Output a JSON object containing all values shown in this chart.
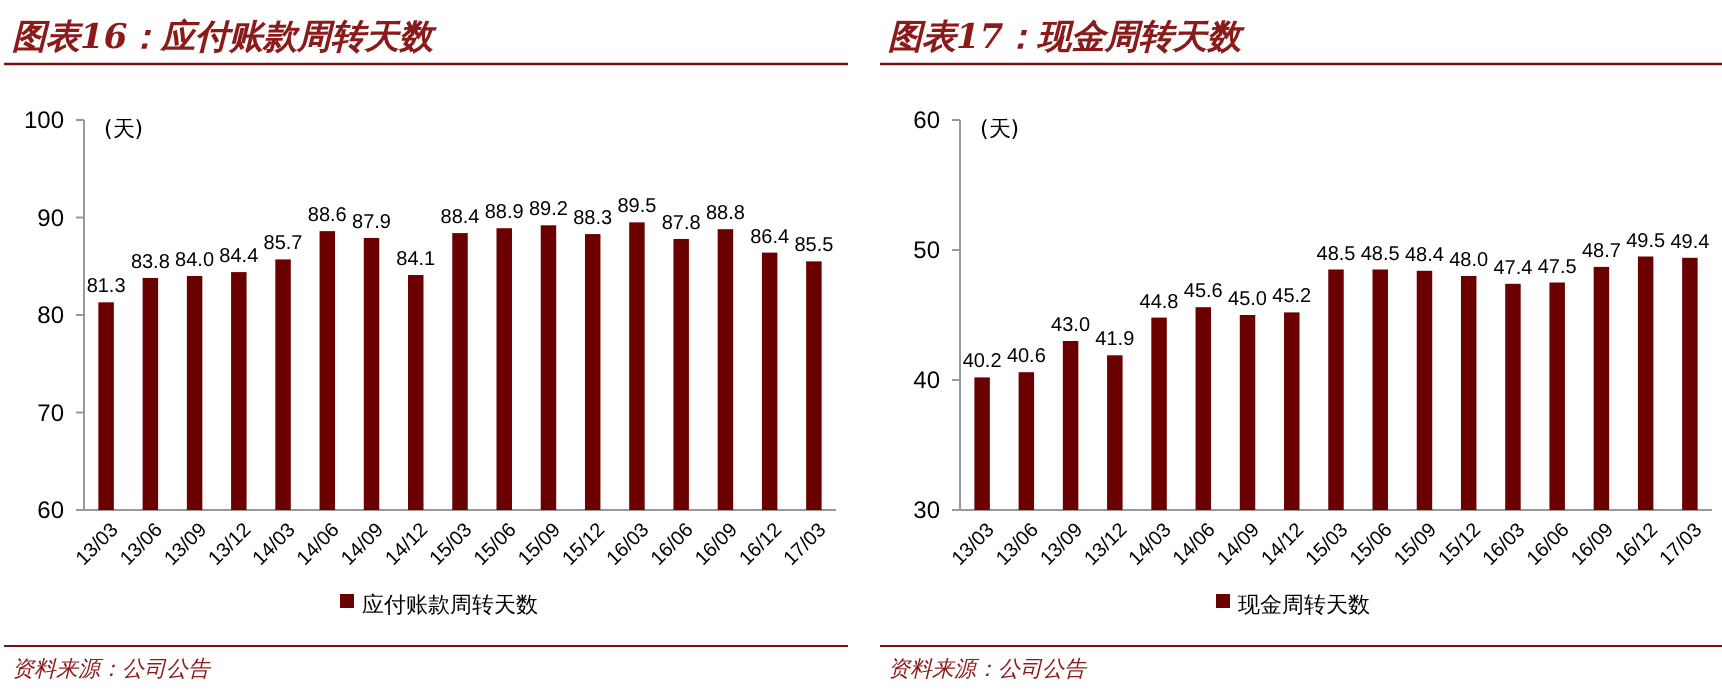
{
  "chart_data": [
    {
      "type": "bar",
      "title": "图表16：应付账款周转天数",
      "ylabel": "(天)",
      "categories": [
        "13/03",
        "13/06",
        "13/09",
        "13/12",
        "14/03",
        "14/06",
        "14/09",
        "14/12",
        "15/03",
        "15/06",
        "15/09",
        "15/12",
        "16/03",
        "16/06",
        "16/09",
        "16/12",
        "17/03"
      ],
      "series": [
        {
          "name": "应付账款周转天数",
          "color": "#6b0000",
          "values": [
            81.3,
            83.8,
            84.0,
            84.4,
            85.7,
            88.6,
            87.9,
            84.1,
            88.4,
            88.9,
            89.2,
            88.3,
            89.5,
            87.8,
            88.8,
            86.4,
            85.5
          ],
          "value_labels": [
            "81.3",
            "83.8",
            "84.0",
            "84.4",
            "85.7",
            "88.6",
            "87.9",
            "84.1",
            "88.4",
            "88.9",
            "89.2",
            "88.3",
            "89.5",
            "87.8",
            "88.8",
            "86.4",
            "85.5"
          ]
        }
      ],
      "ylim": [
        60,
        100
      ],
      "yticks": [
        60,
        70,
        80,
        90,
        100
      ],
      "legend": "bottom",
      "grid": false,
      "annotations": [
        "资料来源：公司公告"
      ]
    },
    {
      "type": "bar",
      "title": "图表17：现金周转天数",
      "ylabel": "(天)",
      "categories": [
        "13/03",
        "13/06",
        "13/09",
        "13/12",
        "14/03",
        "14/06",
        "14/09",
        "14/12",
        "15/03",
        "15/06",
        "15/09",
        "15/12",
        "16/03",
        "16/06",
        "16/09",
        "16/12",
        "17/03"
      ],
      "series": [
        {
          "name": "现金周转天数",
          "color": "#6b0000",
          "values": [
            40.2,
            40.6,
            43.0,
            41.9,
            44.8,
            45.6,
            45.0,
            45.2,
            48.5,
            48.5,
            48.4,
            48.0,
            47.4,
            47.5,
            48.7,
            49.5,
            49.4
          ],
          "value_labels": [
            "40.2",
            "40.6",
            "43.0",
            "41.9",
            "44.8",
            "45.6",
            "45.0",
            "45.2",
            "48.5",
            "48.5",
            "48.4",
            "48.0",
            "47.4",
            "47.5",
            "48.7",
            "49.5",
            "49.4"
          ]
        }
      ],
      "ylim": [
        30,
        60
      ],
      "yticks": [
        30,
        40,
        50,
        60
      ],
      "legend": "bottom",
      "grid": false,
      "annotations": [
        "资料来源：公司公告"
      ]
    }
  ]
}
